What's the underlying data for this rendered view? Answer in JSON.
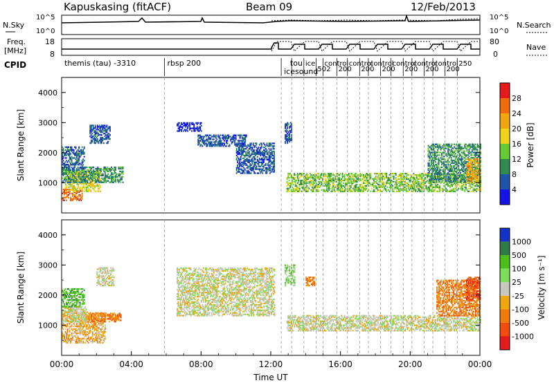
{
  "header": {
    "station": "Kapuskasing (fitACF)",
    "beam": "Beam 09",
    "date": "12/Feb/2013"
  },
  "nsky_panel": {
    "left_label": "N.Sky",
    "right_label": "N.Search",
    "ticks": [
      "10^5",
      "10^0"
    ],
    "right_ticks": [
      "10^5",
      "10^0"
    ]
  },
  "freq_panel": {
    "left_label_top": "Freq.",
    "left_label_bottom": "[MHz]",
    "right_label": "Nave",
    "ticks_left": [
      "18",
      "8"
    ],
    "ticks_right": [
      "80",
      "0"
    ]
  },
  "cpid": {
    "label": "CPID",
    "segments": [
      {
        "name": "themis (tau) -3310",
        "start": 0.0
      },
      {
        "name": "rbsp 200",
        "start": 5.9
      },
      {
        "name": "tou",
        "start": 12.95
      },
      {
        "name": "icesound",
        "start": 12.6
      }
    ],
    "crowded_names": [
      {
        "name": "ice",
        "start": 13.9
      },
      {
        "name": "502",
        "start": 14.6
      },
      {
        "name": "control",
        "start": 15.0
      },
      {
        "name": "200",
        "start": 15.8
      },
      {
        "name": "control",
        "start": 16.4
      },
      {
        "name": "200",
        "start": 17.1
      },
      {
        "name": "control",
        "start": 17.6
      },
      {
        "name": "200",
        "start": 18.3
      },
      {
        "name": "control",
        "start": 18.9
      },
      {
        "name": "200",
        "start": 19.6
      },
      {
        "name": "control",
        "start": 20.1
      },
      {
        "name": "200",
        "start": 20.8
      },
      {
        "name": "control",
        "start": 21.3
      },
      {
        "name": "200",
        "start": 22.0
      },
      {
        "name": "250",
        "start": 22.7
      }
    ]
  },
  "chart_data": [
    {
      "type": "heatmap",
      "name": "power",
      "ylabel": "Slant Range [km]",
      "ylim": [
        0,
        4500
      ],
      "yticks": [
        1000,
        2000,
        3000,
        4000
      ],
      "xlim": [
        0,
        24
      ],
      "colorbar": {
        "label": "Power [dB]",
        "ticks": [
          "4",
          "8",
          "12",
          "16",
          "20",
          "24",
          "28"
        ],
        "colors": [
          "#1414e6",
          "#1f55a8",
          "#2e8a4f",
          "#66cc33",
          "#f2d31a",
          "#f2a60d",
          "#f26b0d",
          "#e61a1a"
        ]
      },
      "regions": [
        {
          "t0": 0.0,
          "t1": 1.2,
          "r0": 400,
          "r1": 800,
          "level": 6
        },
        {
          "t0": 0.2,
          "t1": 2.2,
          "r0": 700,
          "r1": 1400,
          "level": 4
        },
        {
          "t0": 0.0,
          "t1": 3.5,
          "r0": 1000,
          "r1": 1500,
          "level": 2
        },
        {
          "t0": 0.0,
          "t1": 1.3,
          "r0": 1400,
          "r1": 2200,
          "level": 1
        },
        {
          "t0": 1.6,
          "t1": 2.8,
          "r0": 2300,
          "r1": 2900,
          "level": 1
        },
        {
          "t0": 6.6,
          "t1": 8.0,
          "r0": 2700,
          "r1": 3000,
          "level": 0
        },
        {
          "t0": 7.8,
          "t1": 10.6,
          "r0": 2200,
          "r1": 2600,
          "level": 1
        },
        {
          "t0": 10.0,
          "t1": 12.2,
          "r0": 1300,
          "r1": 2300,
          "level": 1
        },
        {
          "t0": 12.8,
          "t1": 13.2,
          "r0": 2300,
          "r1": 3000,
          "level": 1
        },
        {
          "t0": 12.9,
          "t1": 24.0,
          "r0": 700,
          "r1": 1300,
          "level": 3
        },
        {
          "t0": 21.0,
          "t1": 24.0,
          "r0": 1000,
          "r1": 2300,
          "level": 2
        },
        {
          "t0": 23.2,
          "t1": 24.0,
          "r0": 1000,
          "r1": 1800,
          "level": 5
        }
      ]
    },
    {
      "type": "heatmap",
      "name": "velocity",
      "ylabel": "Slant Range [km]",
      "xlabel": "Time UT",
      "ylim": [
        0,
        4500
      ],
      "yticks": [
        1000,
        2000,
        3000,
        4000
      ],
      "xlim": [
        0,
        24
      ],
      "xticks": [
        "00:00",
        "04:00",
        "08:00",
        "12:00",
        "16:00",
        "20:00",
        "00:00"
      ],
      "colorbar": {
        "label": "Velocity [m s⁻¹]",
        "ticks": [
          "1000",
          "500",
          "100",
          "25",
          "-25",
          "-100",
          "-500",
          "-1000"
        ],
        "colors": [
          "#1432c8",
          "#2e7a46",
          "#4dbf1a",
          "#7de05a",
          "#c8c8c0",
          "#f2a60d",
          "#f27a0d",
          "#f24d0d",
          "#e61a1a"
        ]
      },
      "regions": [
        {
          "t0": 0.0,
          "t1": 2.5,
          "r0": 400,
          "r1": 1400,
          "level": 5
        },
        {
          "t0": 0.0,
          "t1": 1.5,
          "r0": 1100,
          "r1": 1600,
          "level": 4
        },
        {
          "t0": 0.0,
          "t1": 1.3,
          "r0": 1600,
          "r1": 2200,
          "level": 2
        },
        {
          "t0": 1.5,
          "t1": 3.4,
          "r0": 1100,
          "r1": 1400,
          "level": 6
        },
        {
          "t0": 2.0,
          "t1": 3.0,
          "r0": 2300,
          "r1": 2900,
          "level": 4
        },
        {
          "t0": 6.6,
          "t1": 12.2,
          "r0": 1300,
          "r1": 2900,
          "level": 4
        },
        {
          "t0": 12.9,
          "t1": 24.0,
          "r0": 800,
          "r1": 1300,
          "level": 4
        },
        {
          "t0": 12.8,
          "t1": 13.4,
          "r0": 2300,
          "r1": 3000,
          "level": 3
        },
        {
          "t0": 14.0,
          "t1": 14.5,
          "r0": 2300,
          "r1": 2600,
          "level": 6
        },
        {
          "t0": 21.5,
          "t1": 24.0,
          "r0": 1300,
          "r1": 2500,
          "level": 6
        },
        {
          "t0": 23.2,
          "t1": 24.0,
          "r0": 1800,
          "r1": 2600,
          "level": 7
        }
      ]
    }
  ]
}
